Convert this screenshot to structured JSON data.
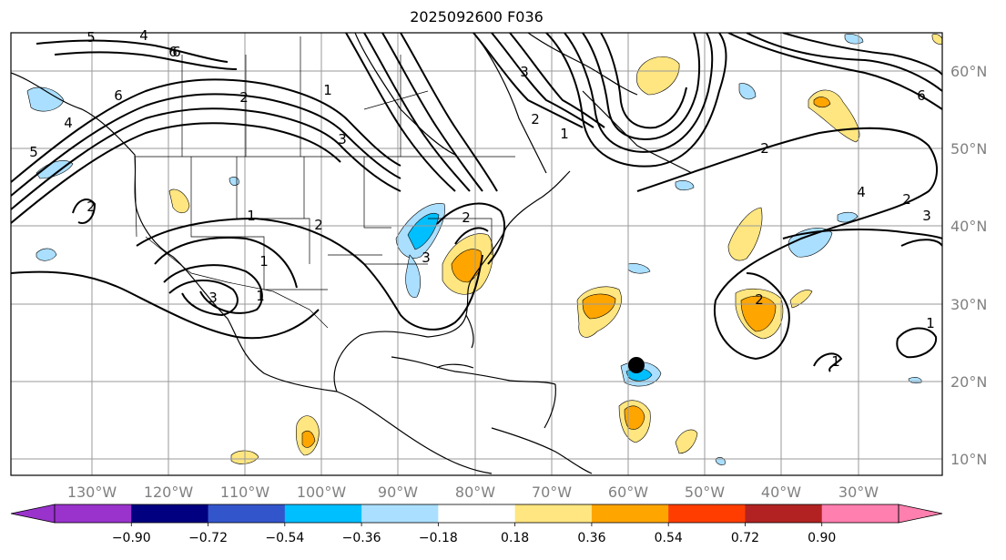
{
  "title": "2025092600 F036",
  "map": {
    "lon_labels": [
      "130°W",
      "120°W",
      "110°W",
      "100°W",
      "90°W",
      "80°W",
      "70°W",
      "60°W",
      "50°W",
      "40°W",
      "30°W"
    ],
    "lat_labels": [
      "60°N",
      "50°N",
      "40°N",
      "30°N",
      "20°N",
      "10°N"
    ],
    "contour_labels": [
      "5",
      "4",
      "6",
      "6",
      "5",
      "4",
      "1",
      "2",
      "2",
      "1",
      "3",
      "2",
      "3",
      "3",
      "2",
      "1",
      "2",
      "4",
      "2",
      "3",
      "6",
      "1",
      "1",
      "2",
      "3",
      "6",
      "1",
      "2",
      "1"
    ],
    "storm_marker": "black-dot"
  },
  "colorbar": {
    "colors": [
      "#9933cc",
      "#000080",
      "#3355cc",
      "#00bfff",
      "#aadfff",
      "#ffffff",
      "#ffe680",
      "#ffa500",
      "#ff3d00",
      "#b22222",
      "#ff7fae"
    ],
    "extend_low_color": "#9933cc",
    "extend_high_color": "#ff7fae",
    "tick_labels": [
      "−0.90",
      "−0.72",
      "−0.54",
      "−0.36",
      "−0.18",
      "0.18",
      "0.36",
      "0.54",
      "0.72",
      "0.90"
    ]
  }
}
